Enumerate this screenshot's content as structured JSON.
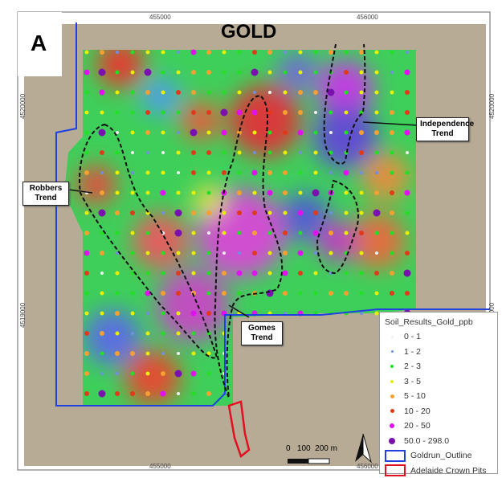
{
  "panel_letter": "A",
  "title": "GOLD",
  "axis": {
    "x_ticks": [
      "455000",
      "456000"
    ],
    "y_ticks": [
      "4520000",
      "4519000"
    ]
  },
  "trends": {
    "robbers": "Robbers Trend",
    "independence": "Independence Trend",
    "gomes": "Gomes Trend"
  },
  "legend": {
    "title": "Soil_Results_Gold_ppb",
    "classes": [
      {
        "label": "0 - 1",
        "color": "#f0f0f0"
      },
      {
        "label": "1 - 2",
        "color": "#6f8fe0"
      },
      {
        "label": "2 - 3",
        "color": "#22e022"
      },
      {
        "label": "3 - 5",
        "color": "#e8f000"
      },
      {
        "label": "5 - 10",
        "color": "#f5a030"
      },
      {
        "label": "10 - 20",
        "color": "#e03a1a"
      },
      {
        "label": "20 - 50",
        "color": "#e010f0"
      },
      {
        "label": "50.0 - 298.0",
        "color": "#7a10b0"
      }
    ],
    "outlines": [
      {
        "label": "Goldrun_Outline",
        "color": "#2040e0"
      },
      {
        "label": "Adelaide Crown Pits",
        "color": "#e01020"
      }
    ]
  },
  "scale_bar": {
    "label": "0   100  200 m"
  },
  "north_arrow": "N"
}
